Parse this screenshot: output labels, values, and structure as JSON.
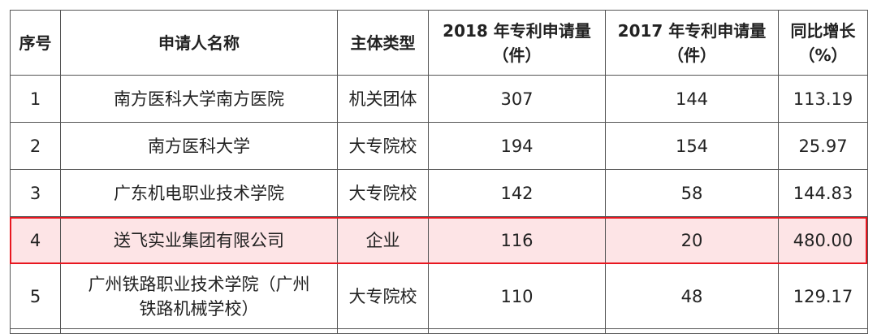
{
  "headers": [
    "序号",
    "申请人名称",
    "主体类型",
    "2018 年专利申请量（件）",
    "2017 年专利申请量（件）",
    "同比增长（%）"
  ],
  "rows": [
    {
      "no": "1",
      "name": "南方医科大学南方医院",
      "type": "机关团体",
      "y2018": "307",
      "y2017": "144",
      "growth": "113.19"
    },
    {
      "no": "2",
      "name": "南方医科大学",
      "type": "大专院校",
      "y2018": "194",
      "y2017": "154",
      "growth": "25.97"
    },
    {
      "no": "3",
      "name": "广东机电职业技术学院",
      "type": "大专院校",
      "y2018": "142",
      "y2017": "58",
      "growth": "144.83"
    },
    {
      "no": "4",
      "name": "送飞实业集团有限公司",
      "type": "企业",
      "y2018": "116",
      "y2017": "20",
      "growth": "480.00"
    },
    {
      "no": "5",
      "name": "广州铁路职业技术学院（广州铁路机械学校）",
      "type": "大专院校",
      "y2018": "110",
      "y2017": "48",
      "growth": "129.17"
    }
  ],
  "highlight": {
    "row": "4",
    "border_color": "#e8161f",
    "fill_color": "#fde4e6"
  }
}
